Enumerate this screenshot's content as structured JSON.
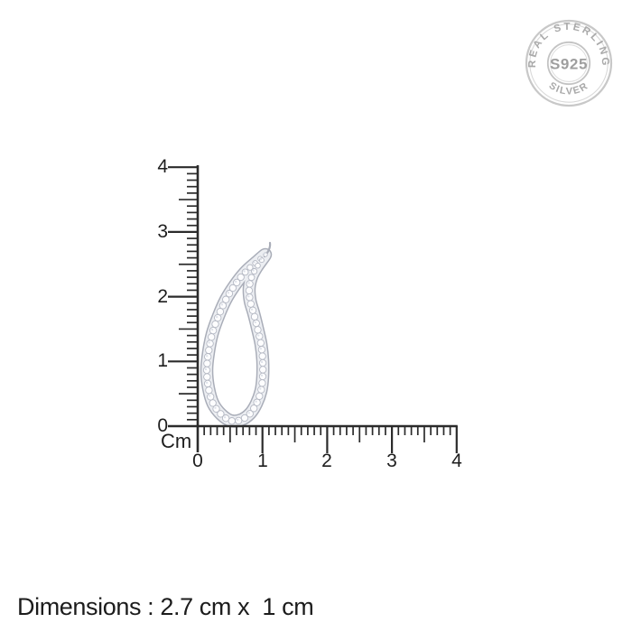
{
  "seal": {
    "top_text": "REAL STERLING",
    "bottom_text": "SILVER",
    "center_text": "S925"
  },
  "ruler": {
    "unit_label": "Cm",
    "vertical_labels": [
      "4",
      "3",
      "2",
      "1",
      "0"
    ],
    "horizontal_labels": [
      "0",
      "1",
      "2",
      "3",
      "4"
    ]
  },
  "dimensions": {
    "label": "Dimensions : 2.7 cm x  1 cm"
  },
  "theme": {
    "ruler_color": "#2b2b2b",
    "label_color": "#1e1e1e",
    "seal_gray": "#a9a9a9",
    "seal_ring": "#c8c8c8",
    "silver_edge": "#a9adb8",
    "silver_band": "#eceef2",
    "crystal_fill": "#fdfdfe",
    "crystal_stroke": "#b4b8c3"
  }
}
